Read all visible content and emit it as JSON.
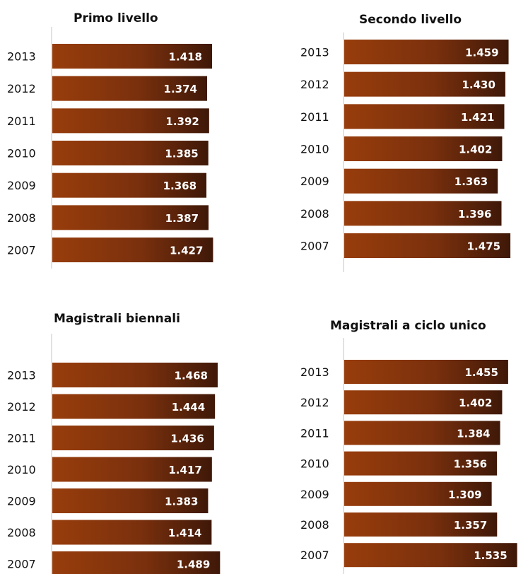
{
  "chart_data": [
    {
      "type": "bar",
      "orientation": "horizontal",
      "title": "Primo livello",
      "categories": [
        "2013",
        "2012",
        "2011",
        "2010",
        "2009",
        "2008",
        "2007"
      ],
      "values": [
        1418,
        1374,
        1392,
        1385,
        1368,
        1387,
        1427
      ],
      "value_labels": [
        "1.418",
        "1.374",
        "1.392",
        "1.385",
        "1.368",
        "1.387",
        "1.427"
      ],
      "xlim": [
        0,
        1600
      ],
      "bar_color": "#8b3a0e"
    },
    {
      "type": "bar",
      "orientation": "horizontal",
      "title": "Secondo livello",
      "categories": [
        "2013",
        "2012",
        "2011",
        "2010",
        "2009",
        "2008",
        "2007"
      ],
      "values": [
        1459,
        1430,
        1421,
        1402,
        1363,
        1396,
        1475
      ],
      "value_labels": [
        "1.459",
        "1.430",
        "1.421",
        "1.402",
        "1.363",
        "1.396",
        "1.475"
      ],
      "xlim": [
        0,
        1600
      ],
      "bar_color": "#8b3a0e"
    },
    {
      "type": "bar",
      "orientation": "horizontal",
      "title": "Magistrali biennali",
      "categories": [
        "2013",
        "2012",
        "2011",
        "2010",
        "2009",
        "2008",
        "2007"
      ],
      "values": [
        1468,
        1444,
        1436,
        1417,
        1383,
        1414,
        1489
      ],
      "value_labels": [
        "1.468",
        "1.444",
        "1.436",
        "1.417",
        "1.383",
        "1.414",
        "1.489"
      ],
      "xlim": [
        0,
        1600
      ],
      "bar_color": "#8b3a0e"
    },
    {
      "type": "bar",
      "orientation": "horizontal",
      "title": "Magistrali a ciclo unico",
      "categories": [
        "2013",
        "2012",
        "2011",
        "2010",
        "2009",
        "2008",
        "2007"
      ],
      "values": [
        1455,
        1402,
        1384,
        1356,
        1309,
        1357,
        1535
      ],
      "value_labels": [
        "1.455",
        "1.402",
        "1.384",
        "1.356",
        "1.309",
        "1.357",
        "1.535"
      ],
      "xlim": [
        0,
        1600
      ],
      "bar_color": "#8b3a0e"
    }
  ]
}
